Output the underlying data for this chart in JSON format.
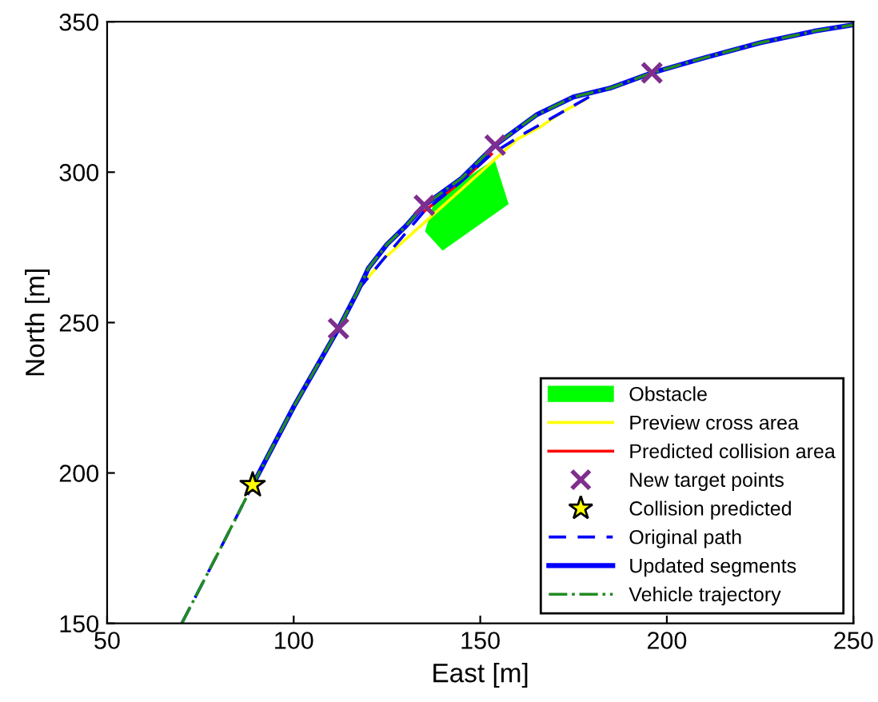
{
  "chart_data": {
    "type": "line",
    "xlabel": "East [m]",
    "ylabel": "North [m]",
    "xlim": [
      50,
      250
    ],
    "ylim": [
      150,
      350
    ],
    "xticks": [
      50,
      100,
      150,
      200,
      250
    ],
    "yticks": [
      150,
      200,
      250,
      300,
      350
    ],
    "grid": false,
    "legend": "bottom right",
    "series": [
      {
        "name": "Obstacle",
        "type": "area",
        "color": "#00ff00",
        "x": [
          135.2,
          139.9,
          157.6,
          153.8,
          137.8
        ],
        "values": [
          280.3,
          273.9,
          289.4,
          304.3,
          291.0
        ]
      },
      {
        "name": "Preview cross area",
        "color": "#ffff00",
        "line_style": "solid",
        "x": [
          120,
          122,
          124,
          160,
          166,
          172,
          178
        ],
        "values": [
          265,
          268,
          271,
          311,
          315,
          320,
          324
        ]
      },
      {
        "name": "Predicted collision area",
        "color": "#ff0000",
        "line_style": "solid",
        "x": [
          135,
          145,
          153
        ],
        "values": [
          287,
          297,
          306
        ]
      },
      {
        "name": "New target points",
        "type": "scatter",
        "color": "#7e2f8e",
        "marker": "cross",
        "x": [
          112,
          135,
          154,
          196
        ],
        "values": [
          248,
          289,
          309,
          333
        ]
      },
      {
        "name": "Collision predicted",
        "type": "scatter",
        "color": "#ffff00",
        "marker": "star",
        "x": [
          89
        ],
        "values": [
          196
        ]
      },
      {
        "name": "Original path",
        "color": "#0000ff",
        "line_style": "dashed",
        "x": [
          70,
          80,
          89,
          100,
          112,
          118,
          124,
          135,
          145,
          153,
          162,
          172,
          182,
          196,
          210,
          225,
          240,
          250
        ],
        "values": [
          150,
          174,
          196,
          222,
          248,
          262,
          271,
          287,
          297,
          306,
          313,
          320,
          327,
          333,
          338,
          343,
          347,
          349
        ]
      },
      {
        "name": "Updated segments",
        "color": "#0000ff",
        "line_style": "solid",
        "x": [
          89,
          100,
          112,
          117,
          120,
          125,
          130,
          135,
          145,
          154,
          165,
          175,
          185,
          196,
          210,
          225,
          240,
          250
        ],
        "values": [
          196,
          222,
          248,
          260,
          268,
          276,
          282,
          289,
          298,
          309,
          319,
          325,
          328,
          333,
          338,
          343,
          347,
          349
        ]
      },
      {
        "name": "Vehicle trajectory",
        "color": "#228b22",
        "line_style": "dashdot",
        "x": [
          70,
          80,
          89,
          100,
          112,
          117,
          120,
          125,
          130,
          135,
          145,
          154,
          165,
          175,
          185,
          196,
          210,
          225,
          240,
          250
        ],
        "values": [
          150,
          174,
          196,
          222,
          248,
          260,
          268,
          276,
          282,
          289,
          298,
          309,
          319,
          325,
          328,
          333,
          338,
          343,
          347,
          349
        ]
      }
    ]
  }
}
